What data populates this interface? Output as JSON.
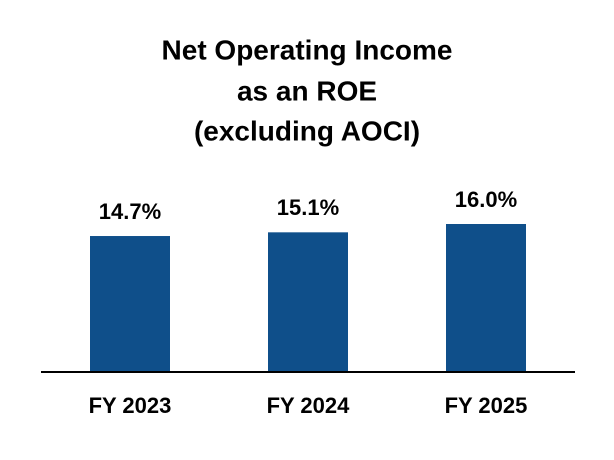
{
  "chart_data": {
    "type": "bar",
    "title": [
      "Net Operating Income",
      "as an ROE",
      "(excluding AOCI)"
    ],
    "categories": [
      "FY 2023",
      "FY 2024",
      "FY 2025"
    ],
    "values": [
      14.7,
      15.1,
      16.0
    ],
    "value_labels": [
      "14.7%",
      "15.1%",
      "16.0%"
    ],
    "color": "#0f4f8a"
  }
}
